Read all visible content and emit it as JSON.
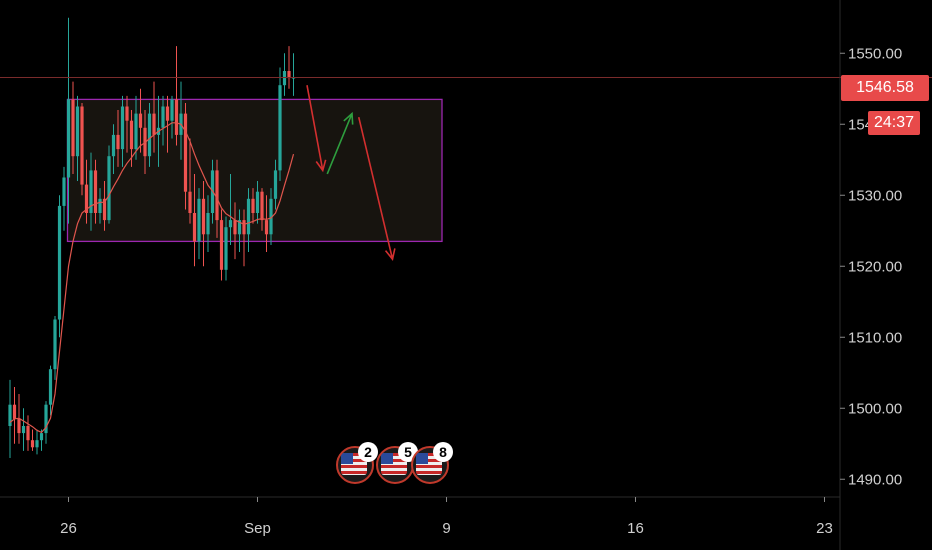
{
  "chart_data": {
    "type": "candlestick",
    "last_price_label": "1546.58",
    "countdown_label": "24:37",
    "y_ticks": [
      "1550.00",
      "1540.00",
      "1530.00",
      "1520.00",
      "1510.00",
      "1500.00",
      "1490.00"
    ],
    "y_tick_values": [
      1550,
      1540,
      1530,
      1520,
      1510,
      1500,
      1490
    ],
    "x_ticks": [
      "26",
      "Sep",
      "9",
      "16",
      "23"
    ],
    "ylim": [
      1487.5,
      1557.5
    ],
    "last_price": 1546.58,
    "zone": {
      "from_bar": 13,
      "to_bar": 96,
      "low": 1523.5,
      "high": 1543.5
    },
    "colors": {
      "up": "#26a69a",
      "down": "#ef5350",
      "zone_border": "#9c27b0",
      "zone_fill": "#17140f",
      "price_line": "#7a2b2b",
      "ma": "#e0564d",
      "arrow_down": "#d32f2f",
      "arrow_up": "#2e9e3e"
    },
    "candles": [
      [
        1497.5,
        1504,
        1493,
        1500.5
      ],
      [
        1500.5,
        1503,
        1495,
        1498.5
      ],
      [
        1498.5,
        1502,
        1495,
        1496.5
      ],
      [
        1496.5,
        1500,
        1494,
        1497.5
      ],
      [
        1497.5,
        1499,
        1494,
        1495.5
      ],
      [
        1495.5,
        1497,
        1494,
        1494.5
      ],
      [
        1494.5,
        1497,
        1493.5,
        1495.5
      ],
      [
        1495.5,
        1497,
        1494,
        1496.5
      ],
      [
        1496.5,
        1501,
        1495,
        1500.5
      ],
      [
        1500.5,
        1506,
        1499,
        1505.5
      ],
      [
        1505.5,
        1513,
        1504,
        1512.5
      ],
      [
        1512.5,
        1530,
        1510,
        1528.5
      ],
      [
        1528.5,
        1534,
        1525,
        1532.5
      ],
      [
        1532.5,
        1555,
        1526,
        1543.5
      ],
      [
        1543.5,
        1546,
        1533,
        1535.5
      ],
      [
        1535.5,
        1544,
        1532,
        1542.5
      ],
      [
        1542.5,
        1543,
        1530,
        1531.5
      ],
      [
        1531.5,
        1535,
        1526,
        1527.5
      ],
      [
        1527.5,
        1536,
        1525,
        1533.5
      ],
      [
        1533.5,
        1535,
        1526,
        1527.5
      ],
      [
        1527.5,
        1531,
        1526,
        1529.5
      ],
      [
        1529.5,
        1532,
        1525,
        1526.5
      ],
      [
        1526.5,
        1537,
        1526,
        1535.5
      ],
      [
        1535.5,
        1540,
        1533,
        1538.5
      ],
      [
        1538.5,
        1542,
        1534,
        1536.5
      ],
      [
        1536.5,
        1544,
        1534,
        1542.5
      ],
      [
        1542.5,
        1544,
        1536,
        1540.5
      ],
      [
        1540.5,
        1542,
        1534,
        1536.5
      ],
      [
        1536.5,
        1544,
        1535,
        1541.5
      ],
      [
        1541.5,
        1545,
        1536,
        1539.5
      ],
      [
        1539.5,
        1542,
        1533,
        1535.5
      ],
      [
        1535.5,
        1543,
        1534,
        1541.5
      ],
      [
        1541.5,
        1546,
        1536,
        1538.5
      ],
      [
        1538.5,
        1544,
        1534,
        1539.5
      ],
      [
        1539.5,
        1544,
        1537,
        1542.5
      ],
      [
        1542.5,
        1544,
        1536,
        1540.5
      ],
      [
        1540.5,
        1544,
        1538,
        1543.5
      ],
      [
        1543.5,
        1551,
        1537,
        1538.5
      ],
      [
        1538.5,
        1546,
        1535,
        1541.5
      ],
      [
        1541.5,
        1543,
        1528,
        1530.5
      ],
      [
        1530.5,
        1538,
        1526,
        1527.5
      ],
      [
        1527.5,
        1533,
        1520,
        1523.5
      ],
      [
        1523.5,
        1531,
        1521,
        1529.5
      ],
      [
        1529.5,
        1532,
        1520,
        1524.5
      ],
      [
        1524.5,
        1530,
        1522,
        1527.5
      ],
      [
        1527.5,
        1535,
        1526,
        1533.5
      ],
      [
        1533.5,
        1535,
        1524,
        1526.5
      ],
      [
        1526.5,
        1528,
        1518,
        1519.5
      ],
      [
        1519.5,
        1527,
        1518,
        1525.5
      ],
      [
        1525.5,
        1533,
        1523,
        1526.5
      ],
      [
        1526.5,
        1529,
        1521,
        1524.5
      ],
      [
        1524.5,
        1528,
        1522,
        1526.5
      ],
      [
        1526.5,
        1528,
        1520,
        1524.5
      ],
      [
        1524.5,
        1531,
        1522,
        1529.5
      ],
      [
        1529.5,
        1531,
        1526,
        1527.5
      ],
      [
        1527.5,
        1532,
        1526,
        1530.5
      ],
      [
        1530.5,
        1531,
        1525,
        1526.5
      ],
      [
        1526.5,
        1530,
        1522,
        1524.5
      ],
      [
        1524.5,
        1531,
        1523,
        1529.5
      ],
      [
        1529.5,
        1535,
        1528,
        1533.5
      ],
      [
        1533.5,
        1548,
        1532,
        1545.5
      ],
      [
        1545.5,
        1550,
        1544,
        1547.5
      ],
      [
        1547.5,
        1551,
        1545,
        1546.5
      ],
      [
        1546.5,
        1550,
        1544,
        1546.58
      ]
    ],
    "ma_values": [
      1498,
      1498.5,
      1498.6,
      1498.2,
      1497.8,
      1497.4,
      1496.9,
      1496.6,
      1497.3,
      1498.6,
      1502,
      1508,
      1514,
      1520,
      1523.5,
      1526,
      1527.5,
      1528,
      1528.5,
      1528.8,
      1529,
      1529,
      1530,
      1531.2,
      1532.3,
      1533.5,
      1534.5,
      1535.3,
      1536.2,
      1537,
      1537.4,
      1538,
      1538.5,
      1539,
      1539.4,
      1539.8,
      1540.2,
      1540.2,
      1540,
      1539,
      1537.6,
      1535.8,
      1534.2,
      1532.8,
      1531.4,
      1530.6,
      1529.6,
      1528.2,
      1527.4,
      1527,
      1526.5,
      1526.2,
      1525.9,
      1526.1,
      1526.3,
      1526.6,
      1526.7,
      1526.6,
      1526.8,
      1527.5,
      1529.2,
      1531.4,
      1533.5,
      1535.8
    ],
    "projection": [
      {
        "kind": "down",
        "from": [
          66,
          1545.5
        ],
        "to": [
          69.5,
          1533.5
        ]
      },
      {
        "kind": "up",
        "from": [
          70.5,
          1533
        ],
        "to": [
          76,
          1541.5
        ]
      },
      {
        "kind": "down",
        "from": [
          77.5,
          1541
        ],
        "to": [
          85,
          1521
        ]
      }
    ]
  },
  "events": [
    {
      "count": "2",
      "icon": "us-flag-icon"
    },
    {
      "count": "5",
      "icon": "us-flag-icon"
    },
    {
      "count": "8",
      "icon": "us-flag-icon"
    }
  ]
}
